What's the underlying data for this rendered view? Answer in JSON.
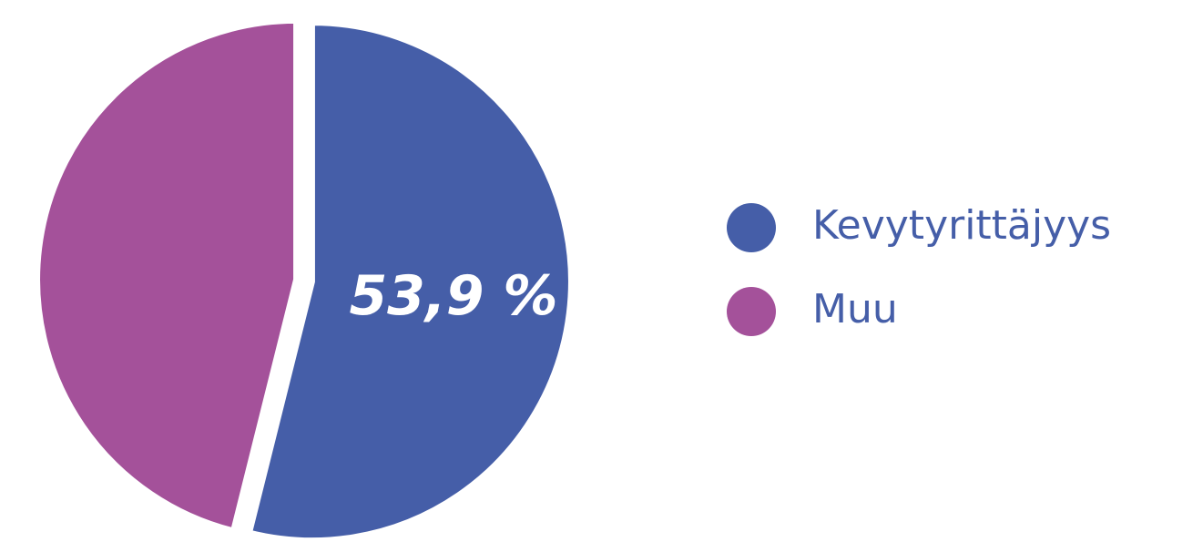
{
  "chart_data": {
    "type": "pie",
    "categories": [
      "Kevytyrittäjyys",
      "Muu"
    ],
    "values": [
      53.9,
      46.1
    ],
    "value_labels": [
      "53,9 %",
      null
    ],
    "colors": [
      "#455ea8",
      "#a4519a"
    ],
    "legend": "right"
  }
}
